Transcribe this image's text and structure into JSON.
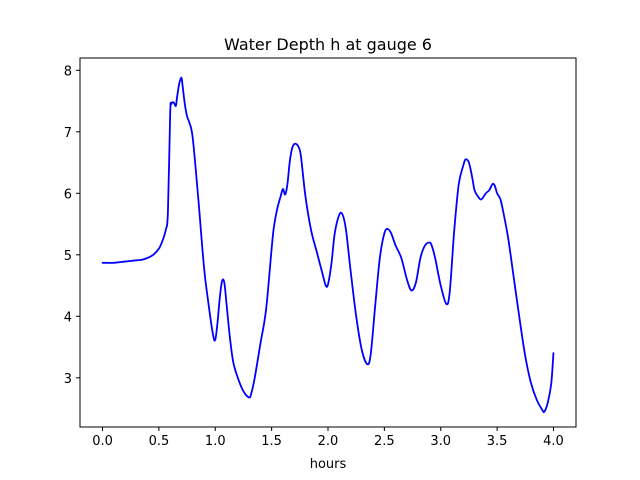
{
  "chart_data": {
    "type": "line",
    "title": "Water Depth h at gauge 6",
    "xlabel": "hours",
    "ylabel": "",
    "xlim": [
      -0.2,
      4.2
    ],
    "ylim": [
      2.2,
      8.2
    ],
    "grid": false,
    "xticks": [
      0.0,
      0.5,
      1.0,
      1.5,
      2.0,
      2.5,
      3.0,
      3.5,
      4.0
    ],
    "xtick_labels": [
      "0.0",
      "0.5",
      "1.0",
      "1.5",
      "2.0",
      "2.5",
      "3.0",
      "3.5",
      "4.0"
    ],
    "yticks": [
      3,
      4,
      5,
      6,
      7,
      8
    ],
    "ytick_labels": [
      "3",
      "4",
      "5",
      "6",
      "7",
      "8"
    ],
    "series": [
      {
        "color": "#0000ff",
        "x": [
          0.0,
          0.1,
          0.2,
          0.3,
          0.35,
          0.4,
          0.45,
          0.5,
          0.53,
          0.56,
          0.58,
          0.6,
          0.61,
          0.63,
          0.65,
          0.66,
          0.68,
          0.7,
          0.71,
          0.73,
          0.75,
          0.77,
          0.8,
          0.85,
          0.9,
          0.94,
          0.98,
          1.0,
          1.02,
          1.04,
          1.06,
          1.08,
          1.1,
          1.13,
          1.16,
          1.2,
          1.25,
          1.3,
          1.32,
          1.35,
          1.4,
          1.45,
          1.5,
          1.52,
          1.55,
          1.58,
          1.6,
          1.62,
          1.64,
          1.66,
          1.68,
          1.7,
          1.72,
          1.74,
          1.76,
          1.8,
          1.85,
          1.9,
          1.95,
          1.98,
          2.0,
          2.03,
          2.06,
          2.1,
          2.13,
          2.16,
          2.2,
          2.25,
          2.3,
          2.35,
          2.38,
          2.42,
          2.46,
          2.5,
          2.53,
          2.56,
          2.6,
          2.65,
          2.7,
          2.74,
          2.78,
          2.82,
          2.86,
          2.9,
          2.92,
          2.95,
          3.0,
          3.05,
          3.08,
          3.12,
          3.16,
          3.2,
          3.22,
          3.25,
          3.28,
          3.3,
          3.33,
          3.36,
          3.4,
          3.43,
          3.46,
          3.48,
          3.5,
          3.53,
          3.56,
          3.6,
          3.65,
          3.7,
          3.75,
          3.8,
          3.85,
          3.9,
          3.92,
          3.95,
          3.98,
          4.0
        ],
        "y": [
          4.87,
          4.87,
          4.89,
          4.91,
          4.92,
          4.95,
          5.0,
          5.1,
          5.22,
          5.4,
          5.7,
          7.3,
          7.45,
          7.48,
          7.42,
          7.55,
          7.78,
          7.88,
          7.75,
          7.45,
          7.25,
          7.15,
          6.9,
          5.9,
          4.8,
          4.2,
          3.7,
          3.62,
          3.9,
          4.3,
          4.57,
          4.55,
          4.2,
          3.65,
          3.25,
          3.0,
          2.78,
          2.68,
          2.75,
          3.0,
          3.55,
          4.1,
          5.1,
          5.45,
          5.75,
          5.95,
          6.07,
          5.98,
          6.15,
          6.5,
          6.72,
          6.8,
          6.8,
          6.75,
          6.6,
          5.95,
          5.4,
          5.05,
          4.7,
          4.5,
          4.52,
          4.85,
          5.35,
          5.65,
          5.65,
          5.4,
          4.75,
          4.0,
          3.45,
          3.22,
          3.4,
          4.2,
          4.95,
          5.35,
          5.42,
          5.35,
          5.15,
          4.95,
          4.6,
          4.42,
          4.55,
          4.95,
          5.15,
          5.2,
          5.15,
          4.95,
          4.5,
          4.2,
          4.4,
          5.4,
          6.15,
          6.45,
          6.55,
          6.5,
          6.25,
          6.05,
          5.95,
          5.9,
          6.0,
          6.05,
          6.15,
          6.12,
          6.0,
          5.9,
          5.65,
          5.25,
          4.6,
          3.95,
          3.35,
          2.92,
          2.65,
          2.48,
          2.45,
          2.6,
          2.9,
          3.4
        ]
      }
    ]
  }
}
